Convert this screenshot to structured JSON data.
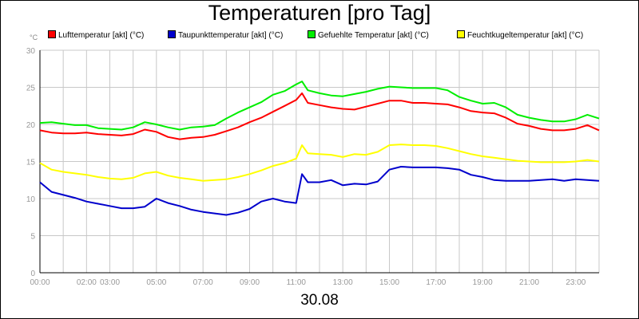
{
  "chart_data": {
    "type": "line",
    "title": "Temperaturen [pro Tag]",
    "xlabel": "30.08",
    "unit_label": "°C",
    "x_tick_labels": [
      "00:00",
      "02:00",
      "03:00",
      "05:00",
      "07:00",
      "09:00",
      "11:00",
      "13:00",
      "15:00",
      "17:00",
      "19:00",
      "21:00",
      "23:00"
    ],
    "x_tick_hours": [
      0,
      2,
      3,
      5,
      7,
      9,
      11,
      13,
      15,
      17,
      19,
      21,
      23
    ],
    "xlim": [
      0,
      24
    ],
    "ylim": [
      0,
      30
    ],
    "y_ticks": [
      0,
      5,
      10,
      15,
      20,
      25,
      30
    ],
    "grid": true,
    "legend_position": "top",
    "x": [
      0,
      0.5,
      1,
      1.5,
      2,
      2.5,
      3,
      3.5,
      4,
      4.5,
      5,
      5.5,
      6,
      6.5,
      7,
      7.5,
      8,
      8.5,
      9,
      9.5,
      10,
      10.5,
      11,
      11.25,
      11.5,
      12,
      12.5,
      13,
      13.5,
      14,
      14.5,
      15,
      15.5,
      16,
      16.5,
      17,
      17.5,
      18,
      18.5,
      19,
      19.5,
      20,
      20.5,
      21,
      21.5,
      22,
      22.5,
      23,
      23.5,
      24
    ],
    "series": [
      {
        "name": "Lufttemperatur [akt] (°C)",
        "color": "#ff0000",
        "values": [
          19.2,
          18.9,
          18.8,
          18.8,
          18.9,
          18.7,
          18.6,
          18.5,
          18.7,
          19.3,
          19.0,
          18.3,
          18.0,
          18.2,
          18.3,
          18.6,
          19.1,
          19.6,
          20.3,
          20.9,
          21.7,
          22.5,
          23.3,
          24.2,
          22.9,
          22.6,
          22.3,
          22.1,
          22.0,
          22.4,
          22.8,
          23.2,
          23.2,
          22.9,
          22.9,
          22.8,
          22.7,
          22.3,
          21.8,
          21.6,
          21.5,
          20.9,
          20.1,
          19.8,
          19.4,
          19.2,
          19.2,
          19.4,
          19.9,
          19.2
        ]
      },
      {
        "name": "Taupunkttemperatur [akt] (°C)",
        "color": "#0000cc",
        "values": [
          12.2,
          10.9,
          10.5,
          10.1,
          9.6,
          9.3,
          9.0,
          8.7,
          8.7,
          8.9,
          10.0,
          9.4,
          9.0,
          8.5,
          8.2,
          8.0,
          7.8,
          8.1,
          8.6,
          9.6,
          10.0,
          9.6,
          9.4,
          13.3,
          12.2,
          12.2,
          12.5,
          11.8,
          12.0,
          11.9,
          12.3,
          13.9,
          14.3,
          14.2,
          14.2,
          14.2,
          14.1,
          13.9,
          13.2,
          12.9,
          12.5,
          12.4,
          12.4,
          12.4,
          12.5,
          12.6,
          12.4,
          12.6,
          12.5,
          12.4
        ]
      },
      {
        "name": "Gefuehlte Temperatur [akt] (°C)",
        "color": "#00ee00",
        "values": [
          20.2,
          20.3,
          20.1,
          19.9,
          19.9,
          19.5,
          19.4,
          19.3,
          19.6,
          20.3,
          20.0,
          19.6,
          19.3,
          19.6,
          19.7,
          19.9,
          20.8,
          21.6,
          22.3,
          23.0,
          24.0,
          24.5,
          25.4,
          25.8,
          24.6,
          24.2,
          23.9,
          23.8,
          24.1,
          24.4,
          24.8,
          25.1,
          25.0,
          24.9,
          24.9,
          24.9,
          24.6,
          23.7,
          23.2,
          22.8,
          22.9,
          22.3,
          21.3,
          20.9,
          20.6,
          20.4,
          20.4,
          20.7,
          21.3,
          20.8
        ]
      },
      {
        "name": "Feuchtkugeltemperatur [akt] (°C)",
        "color": "#ffff00",
        "values": [
          14.8,
          13.9,
          13.6,
          13.4,
          13.2,
          12.9,
          12.7,
          12.6,
          12.8,
          13.4,
          13.6,
          13.1,
          12.8,
          12.6,
          12.4,
          12.5,
          12.6,
          12.9,
          13.3,
          13.8,
          14.4,
          14.8,
          15.4,
          17.2,
          16.1,
          16.0,
          15.9,
          15.6,
          16.0,
          15.9,
          16.3,
          17.2,
          17.3,
          17.2,
          17.2,
          17.1,
          16.8,
          16.4,
          16.0,
          15.7,
          15.5,
          15.3,
          15.1,
          15.0,
          14.9,
          14.9,
          14.9,
          15.0,
          15.2,
          15.0
        ]
      }
    ]
  }
}
